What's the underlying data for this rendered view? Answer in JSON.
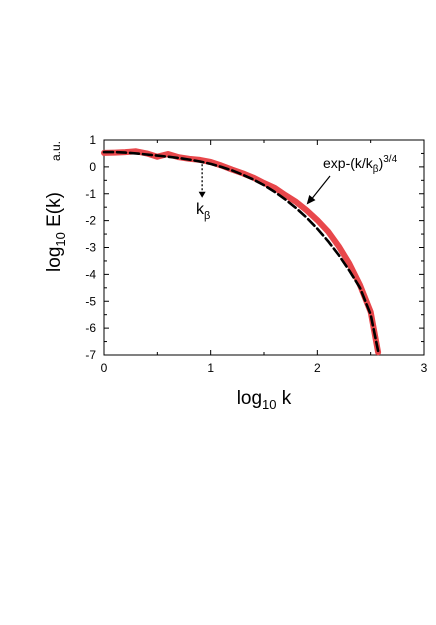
{
  "chart_data": {
    "type": "line",
    "xlabel_main": "log",
    "xlabel_sub": "10",
    "xlabel_tail": " k",
    "ylabel_main": "log",
    "ylabel_sub": "10",
    "ylabel_tail": " E(k)",
    "ylabel_units": "a.u.",
    "xlim": [
      0,
      3
    ],
    "ylim": [
      -7,
      1
    ],
    "x_ticks": [
      "0",
      "1",
      "2",
      "3"
    ],
    "y_ticks": [
      "1",
      "0",
      "-1",
      "-2",
      "-3",
      "-4",
      "-5",
      "-6",
      "-7"
    ],
    "grid": false,
    "series": [
      {
        "style": "solid",
        "color": "#e8474b",
        "x": [
          0.0,
          0.1,
          0.2,
          0.3,
          0.4,
          0.5,
          0.6,
          0.7,
          0.8,
          0.9,
          1.0,
          1.1,
          1.2,
          1.3,
          1.4,
          1.5,
          1.6,
          1.7,
          1.8,
          1.9,
          2.0,
          2.1,
          2.2,
          2.3,
          2.4,
          2.5,
          2.57
        ],
        "y": [
          0.52,
          0.53,
          0.55,
          0.58,
          0.5,
          0.38,
          0.48,
          0.36,
          0.3,
          0.26,
          0.18,
          0.05,
          -0.1,
          -0.24,
          -0.4,
          -0.6,
          -0.78,
          -1.05,
          -1.3,
          -1.62,
          -1.98,
          -2.4,
          -2.95,
          -3.6,
          -4.4,
          -5.4,
          -6.9
        ]
      },
      {
        "style": "dashed",
        "color": "#000000",
        "x": [
          0.0,
          0.1,
          0.2,
          0.3,
          0.4,
          0.5,
          0.6,
          0.7,
          0.8,
          0.9,
          1.0,
          1.1,
          1.2,
          1.3,
          1.4,
          1.5,
          1.6,
          1.7,
          1.8,
          1.9,
          2.0,
          2.1,
          2.2,
          2.3,
          2.4,
          2.5,
          2.57
        ],
        "y": [
          0.55,
          0.55,
          0.53,
          0.5,
          0.46,
          0.42,
          0.38,
          0.33,
          0.27,
          0.2,
          0.11,
          0.0,
          -0.13,
          -0.29,
          -0.47,
          -0.68,
          -0.93,
          -1.21,
          -1.53,
          -1.89,
          -2.3,
          -2.76,
          -3.28,
          -3.86,
          -4.5,
          -5.5,
          -6.85
        ]
      }
    ],
    "annotations": {
      "kbeta": {
        "main": "k",
        "sub": "β",
        "x": 0.92,
        "y_from": 0.1,
        "y_to": -1.15
      },
      "fit": {
        "prefix": "exp-(k/k",
        "sub": "β",
        "close": ")",
        "sup": "3/4",
        "arrow_tip_x": 1.9,
        "arrow_tip_y": -1.4
      }
    }
  }
}
